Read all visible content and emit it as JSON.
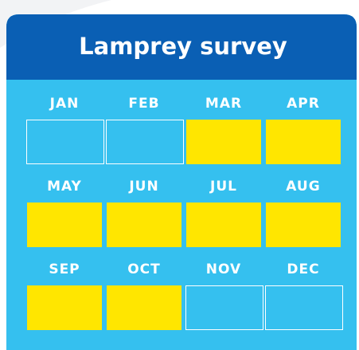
{
  "header": {
    "title": "Lamprey survey"
  },
  "months": [
    {
      "label": "JAN",
      "highlighted": false
    },
    {
      "label": "FEB",
      "highlighted": false
    },
    {
      "label": "MAR",
      "highlighted": true
    },
    {
      "label": "APR",
      "highlighted": true
    },
    {
      "label": "MAY",
      "highlighted": true
    },
    {
      "label": "JUN",
      "highlighted": true
    },
    {
      "label": "JUL",
      "highlighted": true
    },
    {
      "label": "AUG",
      "highlighted": true
    },
    {
      "label": "SEP",
      "highlighted": true
    },
    {
      "label": "OCT",
      "highlighted": true
    },
    {
      "label": "NOV",
      "highlighted": false
    },
    {
      "label": "DEC",
      "highlighted": false
    }
  ]
}
